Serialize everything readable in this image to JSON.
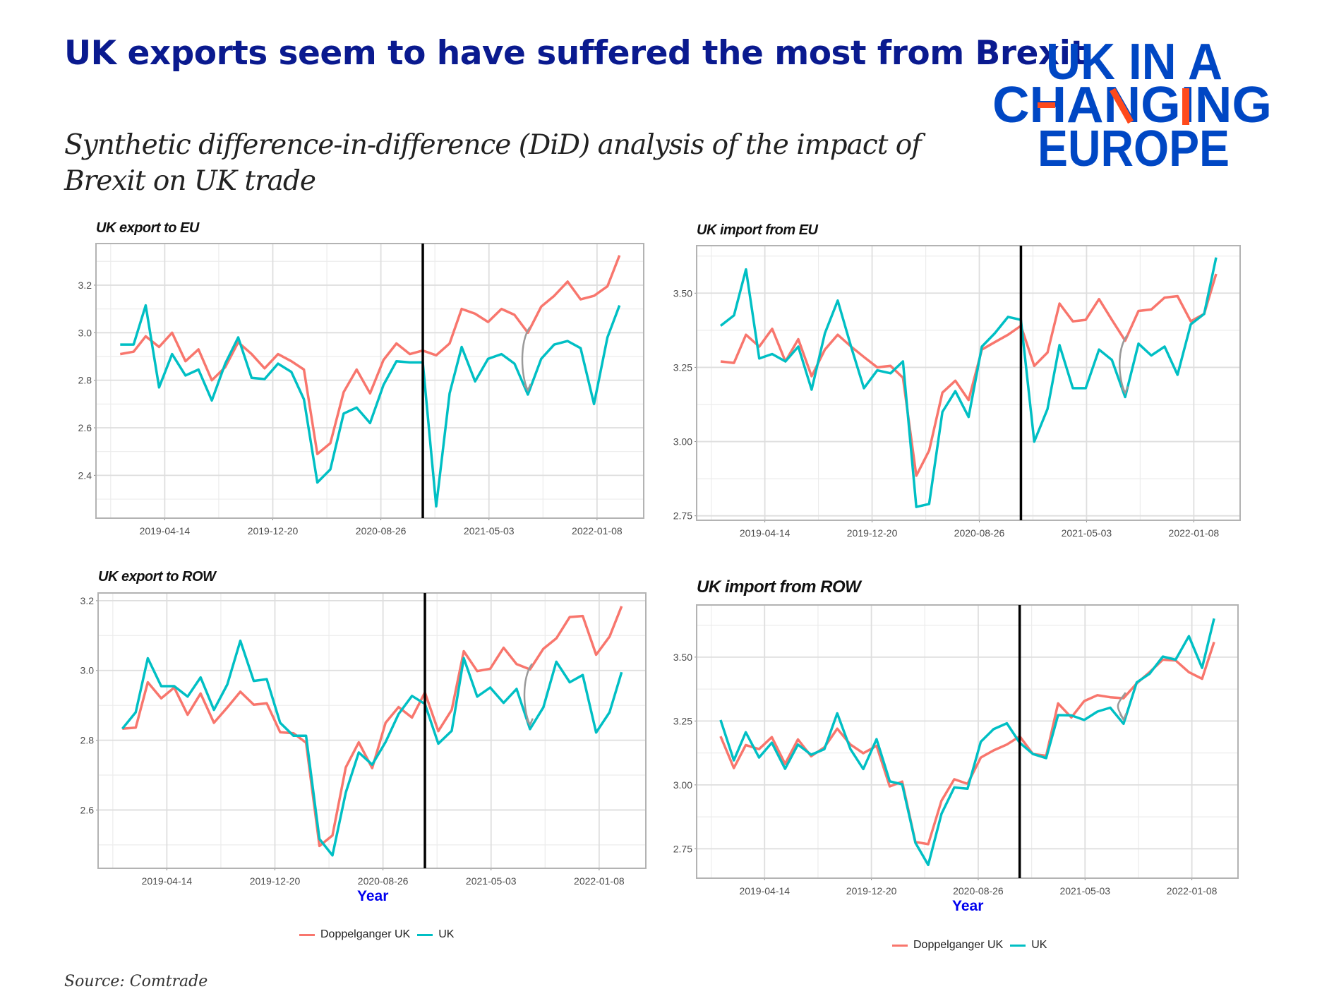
{
  "header": {
    "title": "UK exports seem to have suffered the most from Brexit",
    "subtitle": "Synthetic difference-in-difference (DiD) analysis of the impact of Brexit on UK trade"
  },
  "logo": {
    "lines": [
      "UK IN A",
      "CHANGING",
      "EUROPE"
    ],
    "colors": {
      "blue": "#0047c4",
      "red": "#ff4a1c"
    }
  },
  "source": "Source: Comtrade",
  "colors": {
    "doppelganger": "#F8766D",
    "uk": "#00BFC4",
    "treatment_line": "#000000",
    "arrow": "#9a9a9a"
  },
  "x_dates": [
    "2019-01-01",
    "2019-02-01",
    "2019-03-01",
    "2019-04-01",
    "2019-05-01",
    "2019-06-01",
    "2019-07-01",
    "2019-08-01",
    "2019-09-01",
    "2019-10-01",
    "2019-11-01",
    "2019-12-01",
    "2020-01-01",
    "2020-02-01",
    "2020-03-01",
    "2020-04-01",
    "2020-05-01",
    "2020-06-01",
    "2020-07-01",
    "2020-08-01",
    "2020-09-01",
    "2020-10-01",
    "2020-11-01",
    "2020-12-01",
    "2021-01-01",
    "2021-02-01",
    "2021-03-01",
    "2021-04-01",
    "2021-05-01",
    "2021-06-01",
    "2021-07-01",
    "2021-08-01",
    "2021-09-01",
    "2021-10-01",
    "2021-11-01",
    "2021-12-01",
    "2022-01-01",
    "2022-02-01",
    "2022-03-01"
  ],
  "chart_data": [
    {
      "type": "line",
      "title": "UK export to EU",
      "xlabel": "",
      "xticks": [
        "2019-04-14",
        "2019-12-20",
        "2020-08-26",
        "2021-05-03",
        "2022-01-08"
      ],
      "xlim": [
        "2018-11-06",
        "2022-04-26"
      ],
      "yticks": [
        "2.4",
        "2.6",
        "2.8",
        "3.0",
        "3.2"
      ],
      "ylim": [
        2.22,
        3.375
      ],
      "grid": true,
      "treatment_date": "2020-12-01",
      "series": [
        {
          "name": "Doppelganger UK",
          "values": [
            2.91,
            2.92,
            2.985,
            2.94,
            3.0,
            2.88,
            2.93,
            2.8,
            2.855,
            2.96,
            2.91,
            2.85,
            2.91,
            2.88,
            2.845,
            2.49,
            2.535,
            2.75,
            2.845,
            2.745,
            2.885,
            2.955,
            2.91,
            2.925,
            2.905,
            2.955,
            3.1,
            3.08,
            3.045,
            3.1,
            3.075,
            3.0,
            3.11,
            3.155,
            3.215,
            3.14,
            3.155,
            3.195,
            3.325
          ]
        },
        {
          "name": "UK",
          "values": [
            2.95,
            2.95,
            3.115,
            2.77,
            2.91,
            2.82,
            2.845,
            2.715,
            2.87,
            2.98,
            2.81,
            2.805,
            2.87,
            2.835,
            2.72,
            2.37,
            2.425,
            2.66,
            2.685,
            2.62,
            2.78,
            2.88,
            2.875,
            2.875,
            2.27,
            2.745,
            2.94,
            2.795,
            2.89,
            2.91,
            2.87,
            2.74,
            2.89,
            2.95,
            2.965,
            2.935,
            2.7,
            2.98,
            3.115
          ]
        }
      ]
    },
    {
      "type": "line",
      "title": "UK import from EU",
      "xlabel": "",
      "xticks": [
        "2019-04-14",
        "2019-12-20",
        "2020-08-26",
        "2021-05-03",
        "2022-01-08"
      ],
      "xlim": [
        "2018-11-06",
        "2022-04-26"
      ],
      "yticks": [
        "2.75",
        "3.00",
        "3.25",
        "3.50"
      ],
      "ylim": [
        2.735,
        3.66
      ],
      "grid": true,
      "treatment_date": "2020-12-01",
      "series": [
        {
          "name": "Doppelganger UK",
          "values": [
            3.27,
            3.265,
            3.36,
            3.32,
            3.38,
            3.27,
            3.345,
            3.22,
            3.31,
            3.36,
            3.32,
            3.285,
            3.25,
            3.255,
            3.215,
            2.885,
            2.97,
            3.165,
            3.205,
            3.14,
            3.31,
            3.335,
            3.36,
            3.39,
            3.255,
            3.3,
            3.465,
            3.405,
            3.41,
            3.48,
            3.41,
            3.34,
            3.44,
            3.445,
            3.485,
            3.49,
            3.405,
            3.43,
            3.565
          ]
        },
        {
          "name": "UK",
          "values": [
            3.39,
            3.425,
            3.58,
            3.28,
            3.295,
            3.27,
            3.32,
            3.175,
            3.365,
            3.475,
            3.32,
            3.18,
            3.24,
            3.23,
            3.27,
            2.78,
            2.79,
            3.1,
            3.17,
            3.083,
            3.32,
            3.365,
            3.42,
            3.41,
            3.0,
            3.11,
            3.325,
            3.18,
            3.18,
            3.31,
            3.275,
            3.15,
            3.33,
            3.29,
            3.32,
            3.225,
            3.395,
            3.43,
            3.62
          ]
        }
      ]
    },
    {
      "type": "line",
      "title": "UK export to ROW",
      "xlabel": "Year",
      "xticks": [
        "2019-04-14",
        "2019-12-20",
        "2020-08-26",
        "2021-05-03",
        "2022-01-08"
      ],
      "xlim": [
        "2018-11-06",
        "2022-04-26"
      ],
      "yticks": [
        "2.6",
        "2.8",
        "3.0",
        "3.2"
      ],
      "ylim": [
        2.433,
        3.222
      ],
      "grid": true,
      "legend": "bottom",
      "treatment_date": "2020-12-01",
      "series": [
        {
          "name": "Doppelganger UK",
          "values": [
            2.833,
            2.836,
            2.966,
            2.92,
            2.951,
            2.873,
            2.934,
            2.85,
            2.894,
            2.939,
            2.902,
            2.906,
            2.823,
            2.82,
            2.793,
            2.497,
            2.527,
            2.722,
            2.794,
            2.72,
            2.85,
            2.895,
            2.865,
            2.937,
            2.826,
            2.887,
            3.055,
            2.998,
            3.005,
            3.065,
            3.018,
            3.003,
            3.062,
            3.092,
            3.153,
            3.156,
            3.045,
            3.097,
            3.184
          ]
        },
        {
          "name": "UK",
          "values": [
            2.833,
            2.88,
            3.035,
            2.955,
            2.955,
            2.925,
            2.98,
            2.887,
            2.96,
            3.085,
            2.97,
            2.975,
            2.85,
            2.813,
            2.813,
            2.517,
            2.47,
            2.65,
            2.765,
            2.73,
            2.795,
            2.875,
            2.927,
            2.904,
            2.79,
            2.827,
            3.035,
            2.925,
            2.951,
            2.907,
            2.947,
            2.832,
            2.894,
            3.025,
            2.966,
            2.987,
            2.822,
            2.88,
            2.995
          ]
        }
      ]
    },
    {
      "type": "line",
      "title": "UK import from ROW",
      "xlabel": "Year",
      "xticks": [
        "2019-04-14",
        "2019-12-20",
        "2020-08-26",
        "2021-05-03",
        "2022-01-08"
      ],
      "xlim": [
        "2018-11-06",
        "2022-04-26"
      ],
      "yticks": [
        "2.75",
        "3.00",
        "3.25",
        "3.50"
      ],
      "ylim": [
        2.635,
        3.704
      ],
      "grid": true,
      "legend": "bottom",
      "treatment_date": "2020-12-01",
      "series": [
        {
          "name": "Doppelganger UK",
          "values": [
            3.19,
            3.066,
            3.156,
            3.14,
            3.187,
            3.082,
            3.178,
            3.112,
            3.147,
            3.22,
            3.158,
            3.124,
            3.153,
            2.994,
            3.013,
            2.777,
            2.768,
            2.938,
            3.022,
            3.004,
            3.107,
            3.135,
            3.158,
            3.19,
            3.121,
            3.114,
            3.319,
            3.264,
            3.328,
            3.351,
            3.343,
            3.339,
            3.397,
            3.441,
            3.49,
            3.487,
            3.441,
            3.415,
            3.559
          ]
        },
        {
          "name": "UK",
          "values": [
            3.254,
            3.096,
            3.206,
            3.107,
            3.165,
            3.063,
            3.158,
            3.118,
            3.14,
            3.28,
            3.14,
            3.062,
            3.179,
            3.014,
            3.002,
            2.774,
            2.687,
            2.887,
            2.99,
            2.985,
            3.169,
            3.218,
            3.241,
            3.165,
            3.121,
            3.105,
            3.273,
            3.272,
            3.254,
            3.287,
            3.302,
            3.239,
            3.401,
            3.435,
            3.502,
            3.49,
            3.582,
            3.458,
            3.651
          ]
        }
      ]
    }
  ]
}
